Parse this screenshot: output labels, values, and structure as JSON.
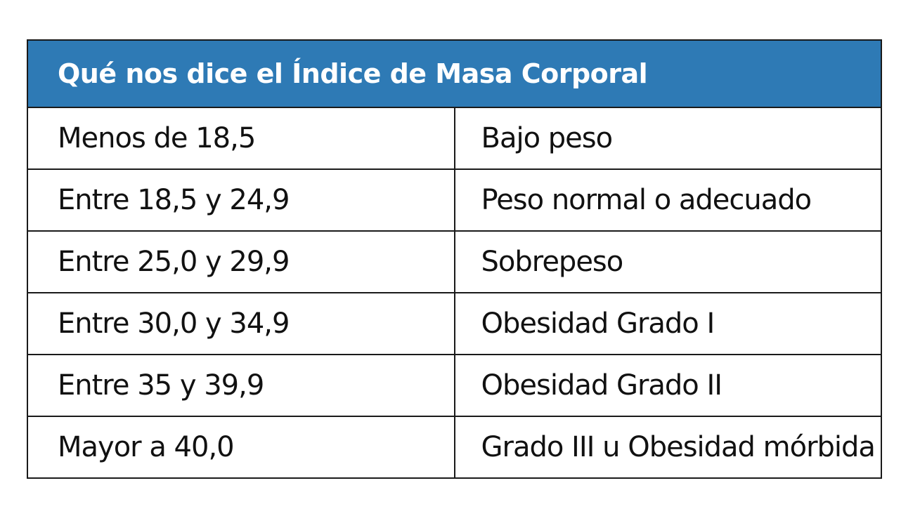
{
  "table": {
    "title": "Qué nos dice el Índice de Masa Corporal",
    "header_color": "#2e7ab5",
    "rows": [
      {
        "range": "Menos de 18,5",
        "category": "Bajo peso"
      },
      {
        "range": "Entre 18,5 y 24,9",
        "category": "Peso normal o adecuado"
      },
      {
        "range": "Entre 25,0 y 29,9",
        "category": "Sobrepeso"
      },
      {
        "range": "Entre 30,0 y 34,9",
        "category": "Obesidad Grado I"
      },
      {
        "range": "Entre 35 y 39,9",
        "category": "Obesidad Grado II"
      },
      {
        "range": "Mayor a 40,0",
        "category": "Grado III u Obesidad mórbida"
      }
    ]
  }
}
